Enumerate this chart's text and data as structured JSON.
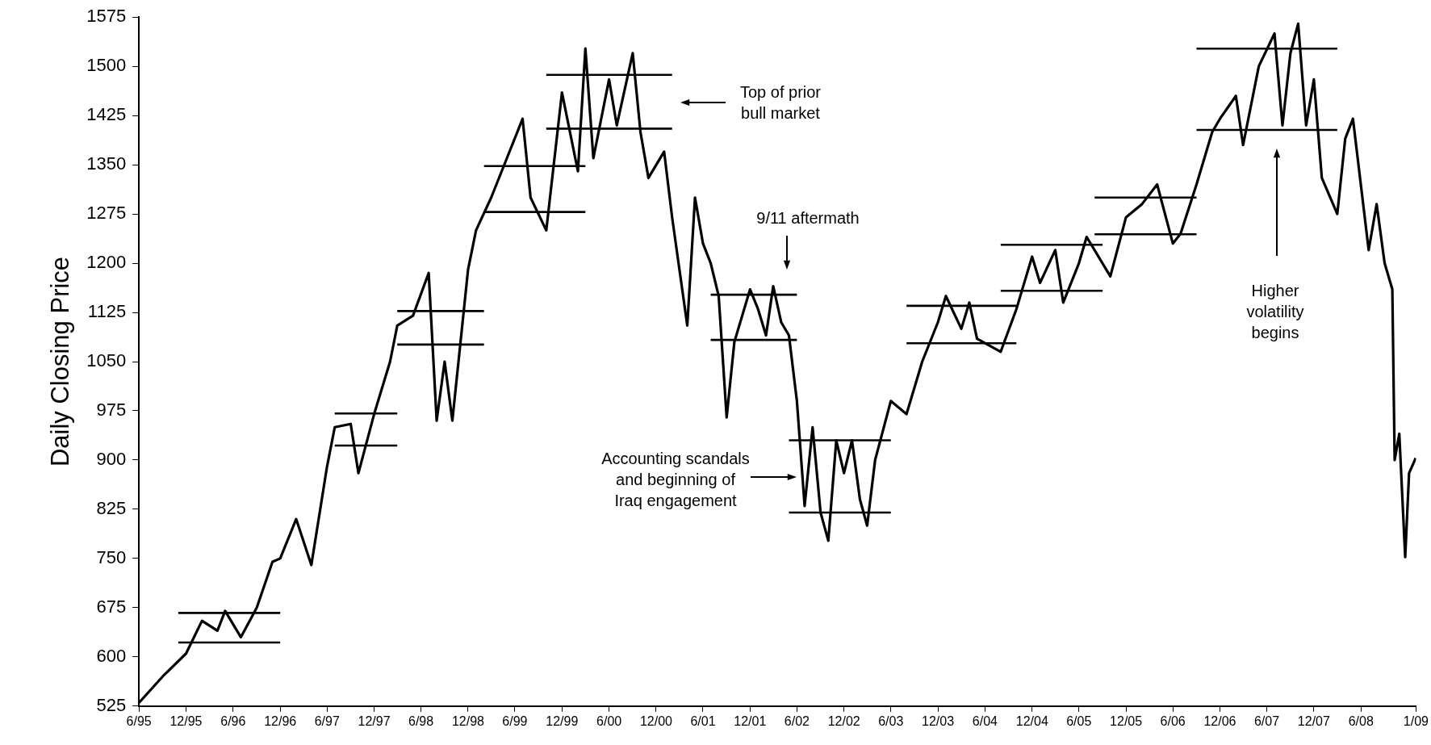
{
  "chart_data": {
    "type": "line",
    "ylabel": "Daily Closing Price",
    "marker": "none",
    "line_style": "solid",
    "xlim": [
      "1995-06",
      "2009-01"
    ],
    "xticks": [
      {
        "value": "1995-06",
        "label": "6/95"
      },
      {
        "value": "1995-12",
        "label": "12/95"
      },
      {
        "value": "1996-06",
        "label": "6/96"
      },
      {
        "value": "1996-12",
        "label": "12/96"
      },
      {
        "value": "1997-06",
        "label": "6/97"
      },
      {
        "value": "1997-12",
        "label": "12/97"
      },
      {
        "value": "1998-06",
        "label": "6/98"
      },
      {
        "value": "1998-12",
        "label": "12/98"
      },
      {
        "value": "1999-06",
        "label": "6/99"
      },
      {
        "value": "1999-12",
        "label": "12/99"
      },
      {
        "value": "2000-06",
        "label": "6/00"
      },
      {
        "value": "2000-12",
        "label": "12/00"
      },
      {
        "value": "2001-06",
        "label": "6/01"
      },
      {
        "value": "2001-12",
        "label": "12/01"
      },
      {
        "value": "2002-06",
        "label": "6/02"
      },
      {
        "value": "2002-12",
        "label": "12/02"
      },
      {
        "value": "2003-06",
        "label": "6/03"
      },
      {
        "value": "2003-12",
        "label": "12/03"
      },
      {
        "value": "2004-06",
        "label": "6/04"
      },
      {
        "value": "2004-12",
        "label": "12/04"
      },
      {
        "value": "2005-06",
        "label": "6/05"
      },
      {
        "value": "2005-12",
        "label": "12/05"
      },
      {
        "value": "2006-06",
        "label": "6/06"
      },
      {
        "value": "2006-12",
        "label": "12/06"
      },
      {
        "value": "2007-06",
        "label": "6/07"
      },
      {
        "value": "2007-12",
        "label": "12/07"
      },
      {
        "value": "2008-06",
        "label": "6/08"
      },
      {
        "value": "2009-01",
        "label": "1/09"
      }
    ],
    "ylim": [
      525,
      1575
    ],
    "yticks": [
      525,
      600,
      675,
      750,
      825,
      900,
      975,
      1050,
      1125,
      1200,
      1275,
      1350,
      1425,
      1500,
      1575
    ],
    "series": [
      {
        "color": "#000000",
        "x": [
          "1995-06",
          "1995-09",
          "1995-12",
          "1996-02",
          "1996-04",
          "1996-05",
          "1996-07",
          "1996-09",
          "1996-11",
          "1996-12",
          "1997-02",
          "1997-04",
          "1997-06",
          "1997-07",
          "1997-09",
          "1997-10",
          "1997-12",
          "1998-02",
          "1998-03",
          "1998-05",
          "1998-07",
          "1998-08",
          "1998-09",
          "1998-10",
          "1998-12",
          "1999-01",
          "1999-03",
          "1999-05",
          "1999-07",
          "1999-08",
          "1999-10",
          "1999-12",
          "2000-01",
          "2000-02",
          "2000-03",
          "2000-04",
          "2000-06",
          "2000-07",
          "2000-09",
          "2000-10",
          "2000-11",
          "2001-01",
          "2001-02",
          "2001-04",
          "2001-05",
          "2001-06",
          "2001-07",
          "2001-08",
          "2001-09",
          "2001-10",
          "2001-12",
          "2002-01",
          "2002-02",
          "2002-03",
          "2002-04",
          "2002-05",
          "2002-06",
          "2002-07",
          "2002-08",
          "2002-09",
          "2002-10",
          "2002-11",
          "2002-12",
          "2003-01",
          "2003-02",
          "2003-03",
          "2003-04",
          "2003-06",
          "2003-08",
          "2003-10",
          "2003-12",
          "2004-01",
          "2004-03",
          "2004-04",
          "2004-05",
          "2004-08",
          "2004-10",
          "2004-12",
          "2005-01",
          "2005-03",
          "2005-04",
          "2005-06",
          "2005-07",
          "2005-10",
          "2005-12",
          "2006-02",
          "2006-04",
          "2006-06",
          "2006-07",
          "2006-09",
          "2006-11",
          "2006-12",
          "2007-02",
          "2007-03",
          "2007-05",
          "2007-07",
          "2007-08",
          "2007-09",
          "2007-10",
          "2007-11",
          "2007-12",
          "2008-01",
          "2008-03",
          "2008-04",
          "2008-05",
          "2008-07",
          "2008-08",
          "2008-09",
          "2008-10-01",
          "2008-10-10",
          "2008-10-28",
          "2008-11-20",
          "2008-12-05",
          "2008-12-31"
        ],
        "values": [
          530,
          570,
          605,
          655,
          640,
          670,
          630,
          675,
          745,
          750,
          810,
          740,
          890,
          950,
          955,
          880,
          970,
          1050,
          1105,
          1120,
          1185,
          960,
          1050,
          960,
          1190,
          1250,
          1300,
          1360,
          1420,
          1300,
          1250,
          1460,
          1400,
          1340,
          1527,
          1360,
          1480,
          1410,
          1520,
          1400,
          1330,
          1370,
          1270,
          1105,
          1300,
          1230,
          1200,
          1150,
          965,
          1080,
          1160,
          1130,
          1090,
          1165,
          1110,
          1090,
          990,
          830,
          950,
          820,
          777,
          930,
          880,
          930,
          840,
          800,
          900,
          990,
          970,
          1050,
          1110,
          1150,
          1100,
          1140,
          1085,
          1065,
          1130,
          1210,
          1170,
          1220,
          1140,
          1200,
          1240,
          1180,
          1270,
          1290,
          1320,
          1230,
          1245,
          1320,
          1400,
          1420,
          1455,
          1380,
          1500,
          1550,
          1410,
          1520,
          1565,
          1410,
          1480,
          1330,
          1275,
          1390,
          1420,
          1220,
          1290,
          1200,
          1160,
          900,
          940,
          752,
          880,
          903
        ]
      },
      {
        "color": "#000000",
        "x": [
          "1995-11",
          "1996-12"
        ],
        "values": [
          667,
          667
        ]
      },
      {
        "color": "#000000",
        "x": [
          "1995-11",
          "1996-12"
        ],
        "values": [
          622,
          622
        ]
      },
      {
        "color": "#000000",
        "x": [
          "1997-07",
          "1998-03"
        ],
        "values": [
          971,
          971
        ]
      },
      {
        "color": "#000000",
        "x": [
          "1997-07",
          "1998-03"
        ],
        "values": [
          922,
          922
        ]
      },
      {
        "color": "#000000",
        "x": [
          "1998-03",
          "1999-02"
        ],
        "values": [
          1127,
          1127
        ]
      },
      {
        "color": "#000000",
        "x": [
          "1998-03",
          "1999-02"
        ],
        "values": [
          1076,
          1076
        ]
      },
      {
        "color": "#000000",
        "x": [
          "1999-02",
          "2000-03"
        ],
        "values": [
          1348,
          1348
        ]
      },
      {
        "color": "#000000",
        "x": [
          "1999-02",
          "2000-03"
        ],
        "values": [
          1278,
          1278
        ]
      },
      {
        "color": "#000000",
        "x": [
          "1999-10",
          "2001-02"
        ],
        "values": [
          1487,
          1487
        ]
      },
      {
        "color": "#000000",
        "x": [
          "1999-10",
          "2001-02"
        ],
        "values": [
          1405,
          1405
        ]
      },
      {
        "color": "#000000",
        "x": [
          "2001-07",
          "2002-06"
        ],
        "values": [
          1152,
          1152
        ]
      },
      {
        "color": "#000000",
        "x": [
          "2001-07",
          "2002-06"
        ],
        "values": [
          1083,
          1083
        ]
      },
      {
        "color": "#000000",
        "x": [
          "2002-05",
          "2003-06"
        ],
        "values": [
          930,
          930
        ]
      },
      {
        "color": "#000000",
        "x": [
          "2002-05",
          "2003-06"
        ],
        "values": [
          820,
          820
        ]
      },
      {
        "color": "#000000",
        "x": [
          "2003-08",
          "2004-10"
        ],
        "values": [
          1135,
          1135
        ]
      },
      {
        "color": "#000000",
        "x": [
          "2003-08",
          "2004-10"
        ],
        "values": [
          1078,
          1078
        ]
      },
      {
        "color": "#000000",
        "x": [
          "2004-08",
          "2005-09"
        ],
        "values": [
          1228,
          1228
        ]
      },
      {
        "color": "#000000",
        "x": [
          "2004-08",
          "2005-09"
        ],
        "values": [
          1158,
          1158
        ]
      },
      {
        "color": "#000000",
        "x": [
          "2005-08",
          "2006-09"
        ],
        "values": [
          1300,
          1300
        ]
      },
      {
        "color": "#000000",
        "x": [
          "2005-08",
          "2006-09"
        ],
        "values": [
          1244,
          1244
        ]
      },
      {
        "color": "#000000",
        "x": [
          "2006-09",
          "2008-03"
        ],
        "values": [
          1527,
          1527
        ]
      },
      {
        "color": "#000000",
        "x": [
          "2006-09",
          "2008-03"
        ],
        "values": [
          1403,
          1403
        ]
      }
    ],
    "annotations": [
      "Top of prior\nbull market",
      "9/11 aftermath",
      "Accounting scandals\nand beginning of\nIraq engagement",
      "Higher\nvolatility\nbegins"
    ]
  }
}
